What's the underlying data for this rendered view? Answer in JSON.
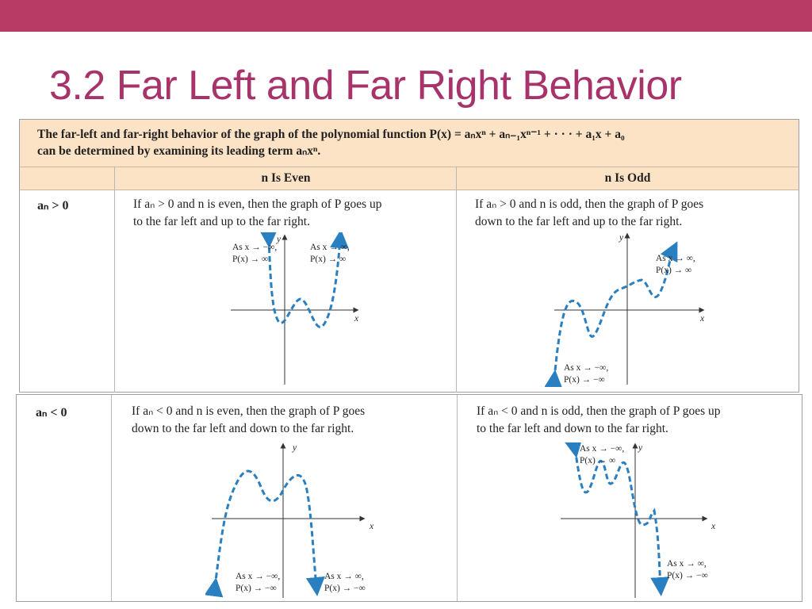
{
  "slide": {
    "title": "3.2 Far Left and Far Right Behavior",
    "accent_color": "#b83b66",
    "title_color": "#a8336a",
    "table_header_color": "#fde3c5",
    "curve_color": "#2a7fc0"
  },
  "table": {
    "intro_line1": "The far-left and far-right behavior of the graph of the polynomial function P(x) = aₙxⁿ + aₙ₋₁xⁿ⁻¹ + · · · + a₁x + a₀",
    "intro_line2": "can be determined by examining its leading term aₙxⁿ.",
    "col_even_header": "n Is Even",
    "col_odd_header": "n Is Odd",
    "row_pos": {
      "label": "aₙ > 0",
      "even_desc_line1": "If aₙ > 0 and n is even, then the graph of P goes up",
      "even_desc_line2": "to the far left and up to the far right.",
      "odd_desc_line1": "If aₙ > 0 and n is odd, then the graph of P goes",
      "odd_desc_line2": "down to the far left and up to the far right.",
      "even_left_1": "As x → −∞,",
      "even_left_2": "P(x) → ∞",
      "even_right_1": "As x → ∞,",
      "even_right_2": "P(x) → ∞",
      "odd_right_1": "As x → ∞,",
      "odd_right_2": "P(x) → ∞",
      "odd_left_1": "As x → −∞,",
      "odd_left_2": "P(x) → −∞"
    },
    "row_neg": {
      "label": "aₙ < 0",
      "even_desc_line1": "If aₙ < 0 and n is even, then the graph of P goes",
      "even_desc_line2": "down to the far left and down to the far right.",
      "odd_desc_line1": "If aₙ < 0 and n is odd, then the graph of P goes up",
      "odd_desc_line2": "to the far left and down to the far right.",
      "even_left_1": "As x → −∞,",
      "even_left_2": "P(x) → −∞",
      "even_right_1": "As x → ∞,",
      "even_right_2": "P(x) → −∞",
      "odd_left_1": "As x → −∞,",
      "odd_left_2": "P(x) → ∞",
      "odd_right_1": "As x → ∞,",
      "odd_right_2": "P(x) → −∞"
    },
    "axis_x": "x",
    "axis_y": "y"
  }
}
